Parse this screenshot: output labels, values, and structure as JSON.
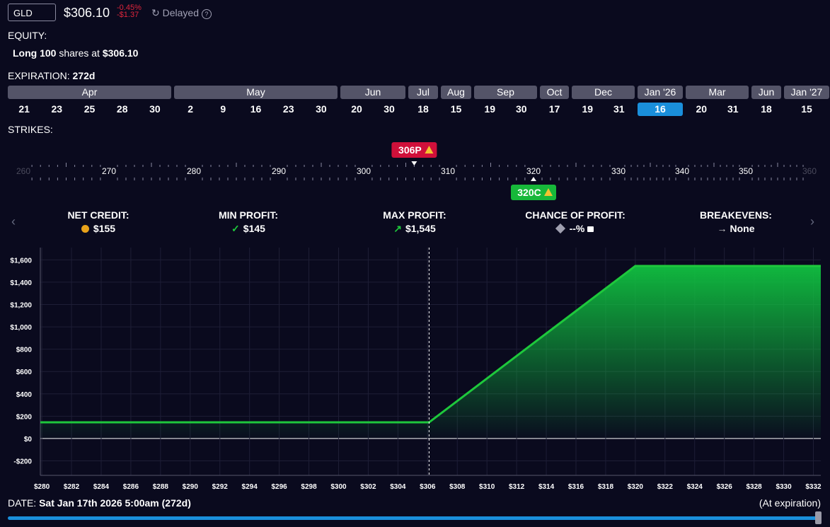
{
  "header": {
    "ticker": "GLD",
    "price": "$306.10",
    "change_pct": "-0.45%",
    "change_abs": "-$1.37",
    "status": "Delayed"
  },
  "equity": {
    "label": "EQUITY:",
    "quantity": "Long 100",
    "text": "shares at",
    "price": "$306.10"
  },
  "expiration": {
    "label": "EXPIRATION:",
    "days": "272d",
    "months": [
      {
        "name": "Apr",
        "dates": [
          "21",
          "23",
          "25",
          "28",
          "30"
        ]
      },
      {
        "name": "May",
        "dates": [
          "2",
          "9",
          "16",
          "23",
          "30"
        ]
      },
      {
        "name": "Jun",
        "dates": [
          "20",
          "30"
        ]
      },
      {
        "name": "Jul",
        "dates": [
          "18"
        ]
      },
      {
        "name": "Aug",
        "dates": [
          "15"
        ]
      },
      {
        "name": "Sep",
        "dates": [
          "19",
          "30"
        ]
      },
      {
        "name": "Oct",
        "dates": [
          "17"
        ]
      },
      {
        "name": "Dec",
        "dates": [
          "19",
          "31"
        ]
      },
      {
        "name": "Jan '26",
        "dates": [
          "16"
        ],
        "selected": true
      },
      {
        "name": "Mar",
        "dates": [
          "20",
          "31"
        ]
      },
      {
        "name": "Jun",
        "dates": [
          "18"
        ]
      },
      {
        "name": "Jan '27",
        "dates": [
          "15"
        ]
      }
    ]
  },
  "strikes": {
    "label": "STRIKES:",
    "scale": [
      260,
      270,
      280,
      290,
      300,
      310,
      320,
      330,
      340,
      350,
      360
    ],
    "legs": [
      {
        "label": "306P",
        "strike": 306,
        "color": "#d0103a"
      },
      {
        "label": "320C",
        "strike": 320,
        "color": "#17b83a"
      }
    ]
  },
  "stats": [
    {
      "label": "NET CREDIT:",
      "value": "$155"
    },
    {
      "label": "MIN PROFIT:",
      "value": "$145"
    },
    {
      "label": "MAX PROFIT:",
      "value": "$1,545"
    },
    {
      "label": "CHANCE OF PROFIT:",
      "value": "--%"
    },
    {
      "label": "BREAKEVENS:",
      "value": "None"
    }
  ],
  "chart_data": {
    "type": "area",
    "x": [
      279.9,
      306.1,
      320,
      332.5
    ],
    "values": [
      145,
      145,
      1545,
      1545
    ],
    "color": "#1ec83c",
    "reference_x": 306.1,
    "xlim": [
      279.9,
      332.5
    ],
    "ylim": [
      -330,
      1710
    ],
    "grid": true,
    "xticks": [
      {
        "value": 280,
        "label": "$280"
      },
      {
        "value": 282,
        "label": "$282"
      },
      {
        "value": 284,
        "label": "$284"
      },
      {
        "value": 286,
        "label": "$286"
      },
      {
        "value": 288,
        "label": "$288"
      },
      {
        "value": 290,
        "label": "$290"
      },
      {
        "value": 292,
        "label": "$292"
      },
      {
        "value": 294,
        "label": "$294"
      },
      {
        "value": 296,
        "label": "$296"
      },
      {
        "value": 298,
        "label": "$298"
      },
      {
        "value": 300,
        "label": "$300"
      },
      {
        "value": 302,
        "label": "$302"
      },
      {
        "value": 304,
        "label": "$304"
      },
      {
        "value": 306,
        "label": "$306"
      },
      {
        "value": 308,
        "label": "$308"
      },
      {
        "value": 310,
        "label": "$310"
      },
      {
        "value": 312,
        "label": "$312"
      },
      {
        "value": 314,
        "label": "$314"
      },
      {
        "value": 316,
        "label": "$316"
      },
      {
        "value": 318,
        "label": "$318"
      },
      {
        "value": 320,
        "label": "$320"
      },
      {
        "value": 322,
        "label": "$322"
      },
      {
        "value": 324,
        "label": "$324"
      },
      {
        "value": 326,
        "label": "$326"
      },
      {
        "value": 328,
        "label": "$328"
      },
      {
        "value": 330,
        "label": "$330"
      },
      {
        "value": 332,
        "label": "$332"
      }
    ],
    "yticks": [
      {
        "value": -200,
        "label": "-$200"
      },
      {
        "value": 0,
        "label": "$0"
      },
      {
        "value": 200,
        "label": "$200"
      },
      {
        "value": 400,
        "label": "$400"
      },
      {
        "value": 600,
        "label": "$600"
      },
      {
        "value": 800,
        "label": "$800"
      },
      {
        "value": 1000,
        "label": "$1,000"
      },
      {
        "value": 1200,
        "label": "$1,200"
      },
      {
        "value": 1400,
        "label": "$1,400"
      },
      {
        "value": 1600,
        "label": "$1,600"
      }
    ]
  },
  "footer": {
    "date_label": "DATE:",
    "date": "Sat Jan 17th 2026 5:00am (272d)",
    "note": "(At expiration)"
  }
}
